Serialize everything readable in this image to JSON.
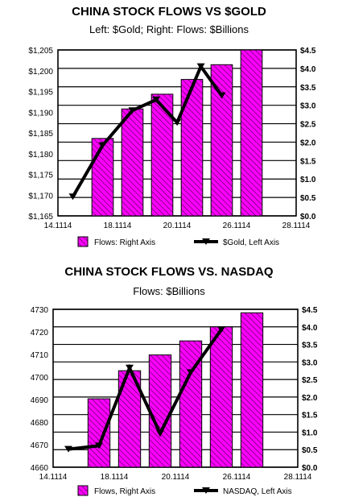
{
  "chart_data": [
    {
      "type": "bar+line",
      "title": "CHINA STOCK FLOWS VS $GOLD",
      "subtitle": "Left: $Gold; Right: Flows: $Billions",
      "x_tick_labels": [
        "14.1114",
        "18.1114",
        "20.1114",
        "26.1114",
        "28.1114"
      ],
      "left_axis": {
        "min": 1165,
        "max": 1205,
        "step": 5,
        "ticks": [
          "$1,165",
          "$1,170",
          "$1,175",
          "$1,180",
          "$1,185",
          "$1,190",
          "$1,195",
          "$1,200",
          "$1,205"
        ]
      },
      "right_axis": {
        "min": 0,
        "max": 4.5,
        "step": 0.5,
        "ticks": [
          "$0.0",
          "$0.5",
          "$1.0",
          "$1.5",
          "$2.0",
          "$2.5",
          "$3.0",
          "$3.5",
          "$4.0",
          "$4.5"
        ]
      },
      "bars": {
        "name": "Flows: Right Axis",
        "axis": "right",
        "x": [
          1,
          2,
          3,
          4,
          5,
          6
        ],
        "values": [
          2.1,
          2.9,
          3.3,
          3.7,
          4.1,
          4.5
        ]
      },
      "line": {
        "name": "$Gold, Left Axis",
        "axis": "left",
        "x": [
          0.5,
          1.5,
          2.5,
          3.3,
          4.0,
          4.8,
          5.5
        ],
        "values": [
          1169.6,
          1182,
          1190.4,
          1193,
          1187.5,
          1201,
          1194
        ]
      },
      "grid": "horizontal",
      "legend_position": "bottom"
    },
    {
      "type": "bar+line",
      "title": "CHINA STOCK FLOWS VS. NASDAQ",
      "subtitle": "Flows: $Billions",
      "x_tick_labels": [
        "14.1114",
        "18.1114",
        "20.1114",
        "26.1114",
        "28.1114"
      ],
      "left_axis": {
        "min": 4660,
        "max": 4730,
        "step": 10,
        "ticks": [
          "4660",
          "4670",
          "4680",
          "4690",
          "4700",
          "4710",
          "4720",
          "4730"
        ]
      },
      "right_axis": {
        "min": 0,
        "max": 4.5,
        "step": 0.5,
        "ticks": [
          "$0.0",
          "$0.5",
          "$1.0",
          "$1.5",
          "$2.0",
          "$2.5",
          "$3.0",
          "$3.5",
          "$4.0",
          "$4.5"
        ]
      },
      "bars": {
        "name": "Flows, Right Axis",
        "axis": "right",
        "x": [
          1,
          2,
          3,
          4,
          5,
          6
        ],
        "values": [
          1.95,
          2.75,
          3.2,
          3.6,
          4.0,
          4.4
        ]
      },
      "line": {
        "name": "NASDAQ, Left Axis",
        "axis": "left",
        "x": [
          0.5,
          1.5,
          2.5,
          3.5,
          4.5,
          5.5
        ],
        "values": [
          4668,
          4669.5,
          4704,
          4675,
          4702,
          4721
        ]
      },
      "grid": "horizontal",
      "legend_position": "bottom"
    }
  ],
  "colors": {
    "bar_fill": "#ff00ff",
    "bar_hatch": "#5a005a",
    "line": "#000000",
    "grid": "#000000"
  }
}
